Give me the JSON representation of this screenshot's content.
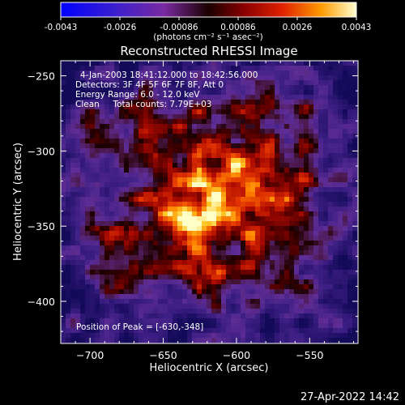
{
  "colorbar": {
    "tick_labels": [
      "-0.0043",
      "-0.0026",
      "-0.00086",
      "0.00086",
      "0.0026",
      "0.0043"
    ],
    "unit_label": "(photons cm⁻² s⁻¹ asec⁻²)",
    "range": [
      -0.0043,
      0.0043
    ]
  },
  "chart_data": {
    "type": "heatmap",
    "title": "Reconstructed RHESSI Image",
    "xlabel": "Heliocentric X (arcsec)",
    "ylabel": "Heliocentric Y (arcsec)",
    "xlim": [
      -720,
      -517
    ],
    "ylim": [
      -428,
      -240
    ],
    "x_ticks": [
      -700,
      -650,
      -600,
      -550
    ],
    "y_ticks": [
      -250,
      -300,
      -350,
      -400
    ],
    "x_tick_labels": [
      "−700",
      "−650",
      "−600",
      "−550"
    ],
    "y_tick_labels": [
      "−250",
      "−300",
      "−350",
      "−400"
    ],
    "peak": [
      -630,
      -348
    ],
    "annotations": [
      "4-Jan-2003 18:41:12.000 to 18:42:56.000",
      "Detectors: 3F 4F 5F 6F 7F 8F, Att 0",
      "Energy Range: 6.0 - 12.0 keV",
      "Clean     Total counts: 7.79E+03",
      "Position of Peak = [-630,-348]"
    ]
  },
  "timestamp": "27-Apr-2022 14:42",
  "colors": {
    "background": "#000000",
    "text": "#ffffff"
  }
}
